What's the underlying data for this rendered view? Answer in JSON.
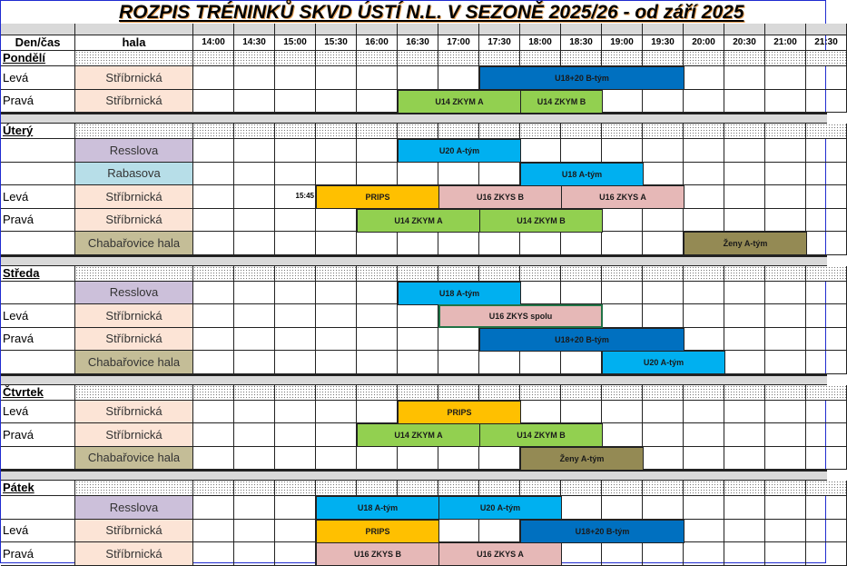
{
  "title": "ROZPIS TRÉNINKŮ SKVD ÚSTÍ N.L. V SEZONĚ 2025/26 - od září 2025",
  "header": {
    "day_time": "Den/čas",
    "hall": "hala",
    "times": [
      "14:00",
      "14:30",
      "15:00",
      "15:30",
      "16:00",
      "16:30",
      "17:00",
      "17:30",
      "18:00",
      "18:30",
      "19:00",
      "19:30",
      "20:00",
      "20:30",
      "21:00",
      "21:30"
    ]
  },
  "colors": {
    "hall": {
      "Stříbrnická": "#fce4d6",
      "Resslova": "#ccc0da",
      "Rabasova": "#b7dee8",
      "Chabařovice hala": "#c4bd97"
    },
    "u18_20_b": "#0070c0",
    "u14": "#92d050",
    "a_tym": "#00b0f0",
    "prips": "#ffc000",
    "u16": "#e6b8b7",
    "zeny": "#948a54"
  },
  "days": [
    {
      "name": "Pondělí",
      "rows": [
        {
          "side": "Levá",
          "hall": "Stříbrnická",
          "events": [
            {
              "label": "U18+20 B-tým",
              "start": "17:30",
              "end": "20:00",
              "color": "#0070c0"
            }
          ]
        },
        {
          "side": "Pravá",
          "hall": "Stříbrnická",
          "events": [
            {
              "label": "U14 ZKYM A",
              "start": "16:30",
              "end": "18:00",
              "color": "#92d050"
            },
            {
              "label": "U14 ZKYM B",
              "start": "18:00",
              "end": "19:00",
              "color": "#92d050"
            }
          ]
        }
      ]
    },
    {
      "name": "Úterý",
      "rows": [
        {
          "side": "",
          "hall": "Resslova",
          "events": [
            {
              "label": "U20 A-tým",
              "start": "16:30",
              "end": "18:00",
              "color": "#00b0f0"
            }
          ]
        },
        {
          "side": "",
          "hall": "Rabasova",
          "events": [
            {
              "label": "U18 A-tým",
              "start": "18:00",
              "end": "19:30",
              "color": "#00b0f0"
            }
          ]
        },
        {
          "side": "Levá",
          "hall": "Stříbrnická",
          "note": "15:45",
          "events": [
            {
              "label": "PRIPS",
              "start": "15:30",
              "end": "17:00",
              "color": "#ffc000"
            },
            {
              "label": "U16 ZKYS B",
              "start": "17:00",
              "end": "18:30",
              "color": "#e6b8b7"
            },
            {
              "label": "U16 ZKYS A",
              "start": "18:30",
              "end": "20:00",
              "color": "#e6b8b7"
            }
          ]
        },
        {
          "side": "Pravá",
          "hall": "Stříbrnická",
          "events": [
            {
              "label": "U14 ZKYM A",
              "start": "16:00",
              "end": "17:30",
              "color": "#92d050"
            },
            {
              "label": "U14 ZKYM B",
              "start": "17:30",
              "end": "19:00",
              "color": "#92d050"
            }
          ]
        },
        {
          "side": "",
          "hall": "Chabařovice hala",
          "events": [
            {
              "label": "Ženy A-tým",
              "start": "20:00",
              "end": "21:30",
              "color": "#948a54"
            }
          ]
        }
      ]
    },
    {
      "name": "Středa",
      "rows": [
        {
          "side": "",
          "hall": "Resslova",
          "events": [
            {
              "label": "U18 A-tým",
              "start": "16:30",
              "end": "18:00",
              "color": "#00b0f0"
            }
          ]
        },
        {
          "side": "Levá",
          "hall": "Stříbrnická",
          "events": [
            {
              "label": "U16 ZKYS spolu",
              "start": "17:00",
              "end": "19:00",
              "color": "#e6b8b7",
              "selected": true
            }
          ]
        },
        {
          "side": "Pravá",
          "hall": "Stříbrnická",
          "events": [
            {
              "label": "U18+20 B-tým",
              "start": "17:30",
              "end": "20:00",
              "color": "#0070c0"
            }
          ]
        },
        {
          "side": "",
          "hall": "Chabařovice hala",
          "events": [
            {
              "label": "U20 A-tým",
              "start": "19:00",
              "end": "20:30",
              "color": "#00b0f0"
            }
          ]
        }
      ]
    },
    {
      "name": "Čtvrtek",
      "rows": [
        {
          "side": "Levá",
          "hall": "",
          "events": [
            {
              "label": "PRIPS",
              "start": "16:30",
              "end": "18:00",
              "color": "#ffc000"
            }
          ]
        },
        {
          "side": "Pravá",
          "hall": "Stříbrnická",
          "events": [
            {
              "label": "U14 ZKYM A",
              "start": "16:00",
              "end": "17:30",
              "color": "#92d050"
            },
            {
              "label": "U14 ZKYM B",
              "start": "17:30",
              "end": "19:00",
              "color": "#92d050"
            }
          ]
        },
        {
          "side": "",
          "hall": "Chabařovice hala",
          "events": [
            {
              "label": "Ženy A-tým",
              "start": "18:00",
              "end": "19:30",
              "color": "#948a54"
            }
          ]
        }
      ]
    },
    {
      "name": "Pátek",
      "rows": [
        {
          "side": "",
          "hall": "Resslova",
          "events": [
            {
              "label": "U18 A-tým",
              "start": "15:30",
              "end": "17:00",
              "color": "#00b0f0"
            },
            {
              "label": "U20 A-tým",
              "start": "17:00",
              "end": "18:30",
              "color": "#00b0f0"
            }
          ]
        },
        {
          "side": "Levá",
          "hall": "Stříbrnická",
          "events": [
            {
              "label": "PRIPS",
              "start": "15:30",
              "end": "17:00",
              "color": "#ffc000"
            },
            {
              "label": "U18+20 B-tým",
              "start": "18:00",
              "end": "20:00",
              "color": "#0070c0"
            }
          ]
        },
        {
          "side": "Pravá",
          "hall": "Stříbrnická",
          "events": [
            {
              "label": "U16 ZKYS B",
              "start": "15:30",
              "end": "17:00",
              "color": "#e6b8b7"
            },
            {
              "label": "U16 ZKYS A",
              "start": "17:00",
              "end": "18:30",
              "color": "#e6b8b7"
            }
          ]
        }
      ]
    }
  ]
}
